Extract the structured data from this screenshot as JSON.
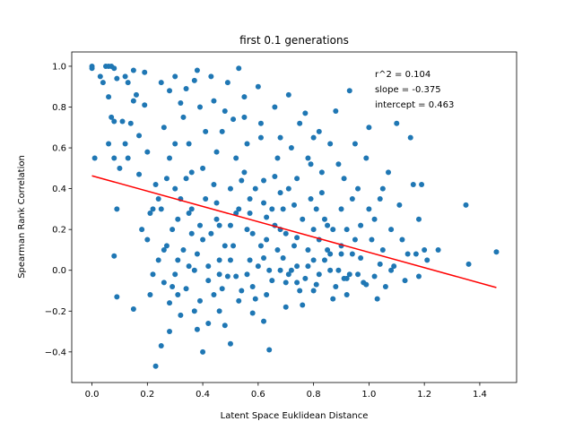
{
  "chart_data": {
    "type": "scatter",
    "title": "first 0.1 generations",
    "xlabel": "Latent Space Euklidean Distance",
    "ylabel": "Spearman Rank Correlation",
    "xlim": [
      -0.073,
      1.533
    ],
    "ylim": [
      -0.55,
      1.07
    ],
    "xticks": [
      0.0,
      0.2,
      0.4,
      0.6,
      0.8,
      1.0,
      1.2,
      1.4
    ],
    "xtick_labels": [
      "0.0",
      "0.2",
      "0.4",
      "0.6",
      "0.8",
      "1.0",
      "1.2",
      "1.4"
    ],
    "yticks": [
      -0.4,
      -0.2,
      0.0,
      0.2,
      0.4,
      0.6,
      0.8,
      1.0
    ],
    "ytick_labels": [
      "−0.4",
      "−0.2",
      "0.0",
      "0.2",
      "0.4",
      "0.6",
      "0.8",
      "1.0"
    ],
    "grid": false,
    "legend": "none",
    "colors": {
      "points": "#1f77b4",
      "fit_line": "#ff0000"
    },
    "annotations": [
      "r^2 = 0.104",
      "slope = -0.375",
      "intercept = 0.463"
    ],
    "fit_line": {
      "slope": -0.375,
      "intercept": 0.463,
      "x_range": [
        0.0,
        1.46
      ]
    },
    "points": [
      [
        0.0,
        1.0
      ],
      [
        0.0,
        0.99
      ],
      [
        0.01,
        0.55
      ],
      [
        0.05,
        1.0
      ],
      [
        0.06,
        1.0
      ],
      [
        0.07,
        1.0
      ],
      [
        0.08,
        0.99
      ],
      [
        0.09,
        0.94
      ],
      [
        0.06,
        0.85
      ],
      [
        0.07,
        0.75
      ],
      [
        0.08,
        0.73
      ],
      [
        0.06,
        0.62
      ],
      [
        0.08,
        0.55
      ],
      [
        0.1,
        0.5
      ],
      [
        0.09,
        0.3
      ],
      [
        0.08,
        0.07
      ],
      [
        0.09,
        -0.13
      ],
      [
        0.12,
        0.95
      ],
      [
        0.13,
        0.92
      ],
      [
        0.15,
        0.98
      ],
      [
        0.16,
        0.86
      ],
      [
        0.15,
        0.83
      ],
      [
        0.14,
        0.72
      ],
      [
        0.17,
        0.66
      ],
      [
        0.17,
        0.47
      ],
      [
        0.15,
        -0.19
      ],
      [
        0.19,
        0.97
      ],
      [
        0.19,
        0.81
      ],
      [
        0.2,
        0.58
      ],
      [
        0.21,
        0.28
      ],
      [
        0.2,
        0.15
      ],
      [
        0.21,
        -0.12
      ],
      [
        0.22,
        -0.02
      ],
      [
        0.23,
        -0.47
      ],
      [
        0.25,
        -0.37
      ],
      [
        0.25,
        0.92
      ],
      [
        0.26,
        0.7
      ],
      [
        0.28,
        0.55
      ],
      [
        0.24,
        0.35
      ],
      [
        0.26,
        0.1
      ],
      [
        0.29,
        -0.08
      ],
      [
        0.28,
        -0.16
      ],
      [
        0.28,
        -0.3
      ],
      [
        0.3,
        0.95
      ],
      [
        0.3,
        0.4
      ],
      [
        0.31,
        0.25
      ],
      [
        0.31,
        0.05
      ],
      [
        0.31,
        -0.12
      ],
      [
        0.32,
        -0.22
      ],
      [
        0.34,
        0.89
      ],
      [
        0.35,
        0.62
      ],
      [
        0.34,
        0.45
      ],
      [
        0.36,
        0.18
      ],
      [
        0.37,
        0.0
      ],
      [
        0.37,
        -0.2
      ],
      [
        0.38,
        -0.29
      ],
      [
        0.38,
        0.98
      ],
      [
        0.39,
        0.8
      ],
      [
        0.4,
        0.5
      ],
      [
        0.41,
        0.35
      ],
      [
        0.4,
        0.15
      ],
      [
        0.42,
        -0.05
      ],
      [
        0.42,
        -0.26
      ],
      [
        0.4,
        -0.4
      ],
      [
        0.44,
        0.83
      ],
      [
        0.45,
        0.58
      ],
      [
        0.45,
        0.33
      ],
      [
        0.46,
        0.22
      ],
      [
        0.46,
        0.05
      ],
      [
        0.47,
        -0.09
      ],
      [
        0.46,
        -0.2
      ],
      [
        0.48,
        -0.27
      ],
      [
        0.49,
        0.92
      ],
      [
        0.51,
        0.74
      ],
      [
        0.5,
        0.4
      ],
      [
        0.52,
        0.28
      ],
      [
        0.51,
        0.12
      ],
      [
        0.52,
        -0.03
      ],
      [
        0.53,
        -0.15
      ],
      [
        0.5,
        -0.36
      ],
      [
        0.53,
        0.99
      ],
      [
        0.55,
        0.85
      ],
      [
        0.56,
        0.62
      ],
      [
        0.57,
        0.35
      ],
      [
        0.56,
        0.2
      ],
      [
        0.57,
        0.05
      ],
      [
        0.58,
        -0.08
      ],
      [
        0.58,
        -0.21
      ],
      [
        0.6,
        0.9
      ],
      [
        0.61,
        0.65
      ],
      [
        0.62,
        0.44
      ],
      [
        0.63,
        0.26
      ],
      [
        0.61,
        0.12
      ],
      [
        0.64,
        0.0
      ],
      [
        0.63,
        -0.12
      ],
      [
        0.62,
        -0.25
      ],
      [
        0.64,
        -0.39
      ],
      [
        0.66,
        0.8
      ],
      [
        0.67,
        0.55
      ],
      [
        0.68,
        0.38
      ],
      [
        0.68,
        0.2
      ],
      [
        0.69,
        0.06
      ],
      [
        0.7,
        -0.06
      ],
      [
        0.7,
        -0.18
      ],
      [
        0.71,
        0.86
      ],
      [
        0.72,
        0.6
      ],
      [
        0.73,
        0.32
      ],
      [
        0.74,
        0.16
      ],
      [
        0.74,
        0.02
      ],
      [
        0.75,
        -0.1
      ],
      [
        0.76,
        -0.17
      ],
      [
        0.77,
        0.77
      ],
      [
        0.78,
        0.55
      ],
      [
        0.79,
        0.35
      ],
      [
        0.8,
        0.2
      ],
      [
        0.8,
        0.05
      ],
      [
        0.81,
        -0.07
      ],
      [
        0.82,
        0.68
      ],
      [
        0.83,
        0.48
      ],
      [
        0.84,
        0.25
      ],
      [
        0.85,
        0.1
      ],
      [
        0.86,
        0.0
      ],
      [
        0.87,
        -0.14
      ],
      [
        0.88,
        0.78
      ],
      [
        0.89,
        0.52
      ],
      [
        0.9,
        0.3
      ],
      [
        0.9,
        0.12
      ],
      [
        0.91,
        -0.04
      ],
      [
        0.92,
        -0.12
      ],
      [
        0.93,
        0.88
      ],
      [
        0.95,
        0.62
      ],
      [
        0.96,
        0.4
      ],
      [
        0.97,
        0.22
      ],
      [
        0.97,
        0.06
      ],
      [
        0.98,
        -0.06
      ],
      [
        0.99,
        0.55
      ],
      [
        1.0,
        0.3
      ],
      [
        1.01,
        0.15
      ],
      [
        1.02,
        -0.03
      ],
      [
        1.03,
        -0.14
      ],
      [
        1.0,
        0.7
      ],
      [
        1.04,
        0.35
      ],
      [
        1.05,
        0.1
      ],
      [
        1.06,
        -0.08
      ],
      [
        1.07,
        0.48
      ],
      [
        1.08,
        0.2
      ],
      [
        1.09,
        0.02
      ],
      [
        1.1,
        0.72
      ],
      [
        1.11,
        0.32
      ],
      [
        1.12,
        0.15
      ],
      [
        1.13,
        -0.05
      ],
      [
        1.15,
        0.65
      ],
      [
        1.16,
        0.42
      ],
      [
        1.17,
        0.08
      ],
      [
        1.18,
        0.25
      ],
      [
        1.19,
        0.42
      ],
      [
        1.2,
        0.1
      ],
      [
        1.21,
        0.05
      ],
      [
        1.25,
        0.1
      ],
      [
        1.35,
        0.32
      ],
      [
        1.36,
        0.03
      ],
      [
        1.46,
        0.09
      ],
      [
        0.25,
        0.3
      ],
      [
        0.27,
        0.45
      ],
      [
        0.29,
        0.2
      ],
      [
        0.33,
        0.1
      ],
      [
        0.35,
        0.28
      ],
      [
        0.38,
        0.08
      ],
      [
        0.43,
        0.18
      ],
      [
        0.44,
        0.42
      ],
      [
        0.48,
        0.12
      ],
      [
        0.54,
        0.44
      ],
      [
        0.57,
        0.28
      ],
      [
        0.6,
        0.02
      ],
      [
        0.63,
        0.15
      ],
      [
        0.65,
        0.3
      ],
      [
        0.67,
        0.1
      ],
      [
        0.71,
        0.4
      ],
      [
        0.72,
        0.0
      ],
      [
        0.76,
        0.25
      ],
      [
        0.78,
        0.1
      ],
      [
        0.81,
        0.3
      ],
      [
        0.84,
        0.05
      ],
      [
        0.87,
        0.2
      ],
      [
        0.89,
        0.0
      ],
      [
        0.92,
        0.2
      ],
      [
        0.94,
        0.08
      ],
      [
        0.96,
        -0.02
      ],
      [
        1.02,
        0.25
      ],
      [
        1.05,
        0.4
      ],
      [
        1.08,
        0.0
      ],
      [
        0.3,
        0.62
      ],
      [
        0.33,
        0.75
      ],
      [
        0.36,
        0.48
      ],
      [
        0.41,
        0.68
      ],
      [
        0.47,
        0.68
      ],
      [
        0.52,
        0.55
      ],
      [
        0.55,
        0.48
      ],
      [
        0.59,
        0.4
      ],
      [
        0.66,
        0.46
      ],
      [
        0.69,
        0.3
      ],
      [
        0.74,
        0.45
      ],
      [
        0.79,
        0.52
      ],
      [
        0.83,
        0.38
      ],
      [
        0.86,
        0.62
      ],
      [
        0.91,
        0.45
      ],
      [
        0.94,
        0.35
      ],
      [
        0.24,
        0.05
      ],
      [
        0.26,
        -0.06
      ],
      [
        0.3,
        -0.02
      ],
      [
        0.34,
        -0.09
      ],
      [
        0.39,
        -0.15
      ],
      [
        0.44,
        -0.12
      ],
      [
        0.49,
        -0.03
      ],
      [
        0.54,
        -0.1
      ],
      [
        0.59,
        -0.14
      ],
      [
        0.65,
        -0.05
      ],
      [
        0.71,
        -0.02
      ],
      [
        0.77,
        -0.04
      ],
      [
        0.82,
        -0.02
      ],
      [
        0.88,
        -0.08
      ],
      [
        0.93,
        -0.02
      ],
      [
        0.99,
        -0.07
      ],
      [
        0.18,
        0.2
      ],
      [
        0.22,
        0.3
      ],
      [
        0.23,
        0.42
      ],
      [
        0.27,
        0.12
      ],
      [
        0.32,
        0.35
      ],
      [
        0.36,
        0.3
      ],
      [
        0.39,
        0.22
      ],
      [
        0.45,
        0.25
      ],
      [
        0.5,
        0.22
      ],
      [
        0.53,
        0.3
      ],
      [
        0.58,
        0.18
      ],
      [
        0.62,
        0.33
      ],
      [
        0.66,
        0.22
      ],
      [
        0.7,
        0.18
      ],
      [
        0.73,
        0.12
      ],
      [
        0.78,
        0.02
      ],
      [
        0.82,
        0.15
      ],
      [
        0.85,
        0.22
      ],
      [
        0.9,
        0.08
      ],
      [
        0.95,
        0.15
      ],
      [
        0.28,
        0.88
      ],
      [
        0.32,
        0.82
      ],
      [
        0.37,
        0.93
      ],
      [
        0.43,
        0.95
      ],
      [
        0.48,
        0.78
      ],
      [
        0.55,
        0.75
      ],
      [
        0.61,
        0.72
      ],
      [
        0.68,
        0.65
      ],
      [
        0.75,
        0.72
      ],
      [
        0.8,
        0.65
      ],
      [
        0.11,
        0.73
      ],
      [
        0.12,
        0.62
      ],
      [
        0.13,
        0.55
      ],
      [
        0.03,
        0.95
      ],
      [
        0.04,
        0.92
      ],
      [
        0.35,
        0.02
      ],
      [
        0.42,
        0.02
      ],
      [
        0.46,
        -0.02
      ],
      [
        0.5,
        0.05
      ],
      [
        0.56,
        -0.02
      ],
      [
        0.62,
        0.06
      ],
      [
        0.68,
        0.0
      ],
      [
        0.74,
        -0.06
      ],
      [
        0.8,
        -0.1
      ],
      [
        0.86,
        0.08
      ],
      [
        0.92,
        -0.04
      ],
      [
        1.04,
        0.03
      ],
      [
        1.14,
        0.08
      ],
      [
        1.18,
        -0.03
      ]
    ]
  }
}
